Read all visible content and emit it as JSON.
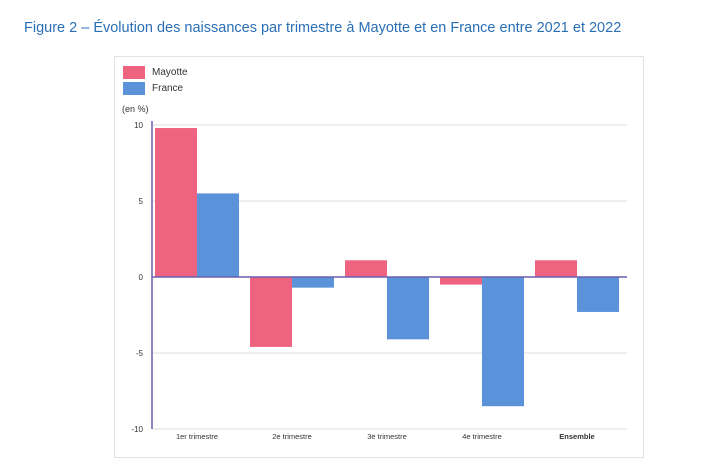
{
  "figure_title": "Figure 2 – Évolution des naissances par trimestre à Mayotte et en France entre 2021 et 2022",
  "colors": {
    "mayotte": "#ee6480",
    "france": "#5b93da",
    "grid": "#dedede",
    "axis": "#6b5fb0"
  },
  "chart_data": {
    "type": "bar",
    "title": "",
    "unit_label": "(en %)",
    "xlabel": "",
    "ylabel": "",
    "ylim": [
      -10,
      10
    ],
    "yticks": [
      -10,
      -5,
      0,
      5,
      10
    ],
    "grid": true,
    "legend_position": "top-left",
    "categories": [
      "1er trimestre",
      "2e trimestre",
      "3e trimestre",
      "4e trimestre",
      "Ensemble"
    ],
    "series": [
      {
        "name": "Mayotte",
        "values": [
          9.8,
          -4.6,
          1.1,
          -0.5,
          1.1
        ]
      },
      {
        "name": "France",
        "values": [
          5.5,
          -0.7,
          -4.1,
          -8.5,
          -2.3
        ]
      }
    ]
  }
}
